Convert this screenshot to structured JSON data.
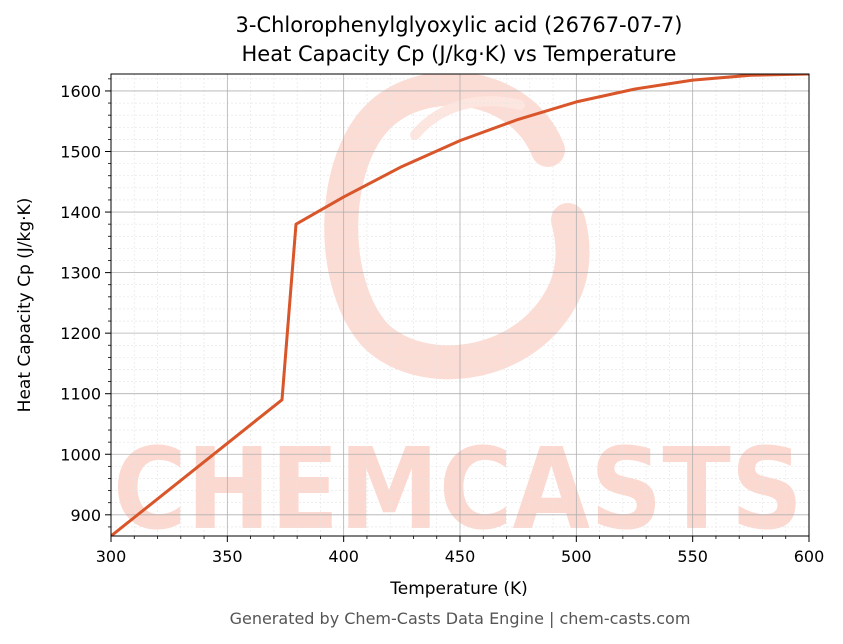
{
  "chart_data": {
    "type": "line",
    "title": "3-Chlorophenylglyoxylic acid (26767-07-7)",
    "subtitle": "Heat Capacity Cp (J/kg·K) vs Temperature",
    "xlabel": "Temperature (K)",
    "ylabel": "Heat Capacity Cp (J/kg·K)",
    "xlim": [
      300,
      600
    ],
    "ylim": [
      865,
      1628
    ],
    "xticks": [
      300,
      350,
      400,
      450,
      500,
      550,
      600
    ],
    "yticks": [
      900,
      1000,
      1100,
      1200,
      1300,
      1400,
      1500,
      1600
    ],
    "grid": true,
    "legend": "none",
    "line_color": "#d9552a",
    "watermark_color": "#fcd9d0",
    "series": [
      {
        "x": [
          300,
          373.5,
          379.5,
          400,
          425,
          450,
          475,
          500,
          525,
          550,
          575,
          600
        ],
        "y": [
          865,
          1090,
          1380,
          1425,
          1475,
          1518,
          1553,
          1582,
          1603,
          1618,
          1626,
          1628
        ]
      }
    ]
  },
  "watermark": {
    "text": "CHEMCASTS"
  },
  "footer": "Generated by Chem-Casts Data Engine | chem-casts.com"
}
